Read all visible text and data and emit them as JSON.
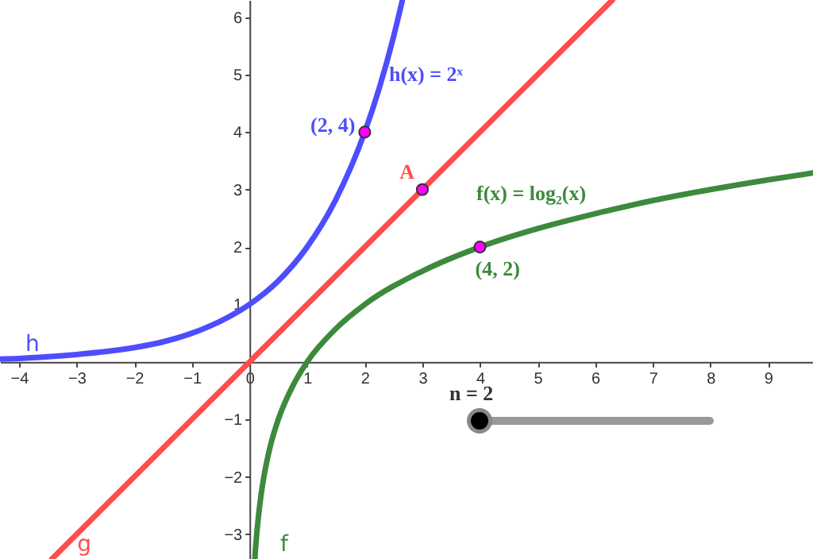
{
  "chart_data": {
    "type": "line",
    "xlim": [
      -4.33,
      9.78
    ],
    "ylim": [
      -3.43,
      6.3
    ],
    "xticks": [
      -4,
      -3,
      -2,
      -1,
      0,
      1,
      2,
      3,
      4,
      5,
      6,
      7,
      8,
      9
    ],
    "yticks": [
      -3,
      -2,
      -1,
      1,
      2,
      3,
      4,
      5,
      6
    ],
    "series": [
      {
        "name": "h",
        "color": "#4d4dff",
        "x": [
          -4.33,
          -4,
          -3.5,
          -3,
          -2.5,
          -2,
          -1.5,
          -1,
          -0.5,
          0,
          0.5,
          1,
          1.5,
          2,
          2.25,
          2.5,
          2.65
        ],
        "values": [
          0.05,
          0.06,
          0.09,
          0.13,
          0.18,
          0.25,
          0.35,
          0.5,
          0.71,
          1,
          1.41,
          2,
          2.83,
          4,
          4.76,
          5.66,
          6.28
        ]
      },
      {
        "name": "g",
        "color": "#ff4d4d",
        "x": [
          -3.43,
          6.3
        ],
        "values": [
          -3.43,
          6.3
        ]
      },
      {
        "name": "f",
        "color": "#3d8a3d",
        "x": [
          0.093,
          0.1,
          0.125,
          0.15,
          0.2,
          0.25,
          0.35,
          0.5,
          0.75,
          1,
          1.5,
          2,
          3,
          4,
          5,
          6,
          7,
          8,
          9,
          9.78
        ],
        "values": [
          -3.43,
          -3.32,
          -3,
          -2.74,
          -2.32,
          -2,
          -1.51,
          -1,
          -0.42,
          0,
          0.58,
          1,
          1.58,
          2,
          2.32,
          2.58,
          2.81,
          3,
          3.17,
          3.29
        ]
      },
      {
        "type": "scatter",
        "color": "#ff00ff",
        "x": [
          2,
          3,
          4
        ],
        "values": [
          4,
          3,
          2
        ]
      }
    ],
    "annotations": [
      "h(x) = 2ˣ",
      "f(x) = log₂(x)",
      {
        "text": "(2, 4)",
        "x": 2,
        "y": 4
      },
      {
        "text": "A",
        "x": 3,
        "y": 3
      },
      {
        "text": "(4, 2)",
        "x": 4,
        "y": 2
      },
      "n = 2"
    ]
  }
}
